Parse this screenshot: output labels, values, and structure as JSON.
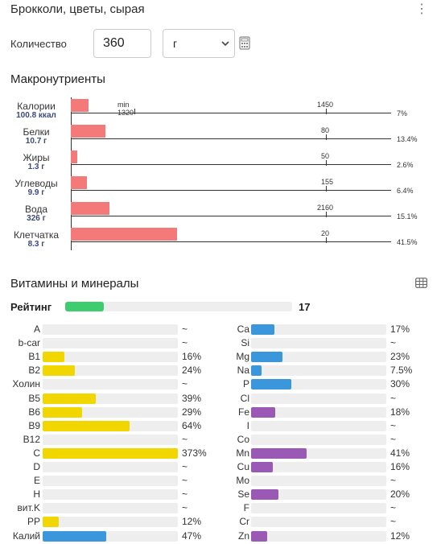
{
  "header": {
    "title": "Брокколи, цветы, сырая"
  },
  "quantity": {
    "label": "Количество",
    "value": "360",
    "unit": "г"
  },
  "macros": {
    "title": "Макронутриенты",
    "min_label": "min 1320",
    "color": "#f47a7a",
    "items": [
      {
        "name": "Калории",
        "value": "100.8 ккал",
        "target": "1450",
        "percent": "7%",
        "fraction": 0.07
      },
      {
        "name": "Белки",
        "value": "10.7 г",
        "target": "80",
        "percent": "13.4%",
        "fraction": 0.134
      },
      {
        "name": "Жиры",
        "value": "1.3 г",
        "target": "50",
        "percent": "2.6%",
        "fraction": 0.026
      },
      {
        "name": "Углеводы",
        "value": "9.9 г",
        "target": "155",
        "percent": "6.4%",
        "fraction": 0.064
      },
      {
        "name": "Вода",
        "value": "326 г",
        "target": "2160",
        "percent": "15.1%",
        "fraction": 0.151
      },
      {
        "name": "Клетчатка",
        "value": "8.3 г",
        "target": "20",
        "percent": "41.5%",
        "fraction": 0.415
      }
    ]
  },
  "vitamins": {
    "title": "Витамины и минералы",
    "rating_label": "Рейтинг",
    "rating_value": "17",
    "rating_fraction": 0.17,
    "rating_color": "#3dcc6e",
    "colors": {
      "vitamin": "#f2d600",
      "mineral_blue": "#3b97dc",
      "mineral_purple": "#9b59b6"
    },
    "left": [
      {
        "name": "A",
        "value": "~",
        "fraction": 0,
        "color": "#f2d600"
      },
      {
        "name": "b-car",
        "value": "~",
        "fraction": 0,
        "color": "#f2d600"
      },
      {
        "name": "B1",
        "value": "16%",
        "fraction": 0.16,
        "color": "#f2d600"
      },
      {
        "name": "B2",
        "value": "24%",
        "fraction": 0.24,
        "color": "#f2d600"
      },
      {
        "name": "Холин",
        "value": "~",
        "fraction": 0,
        "color": "#f2d600"
      },
      {
        "name": "B5",
        "value": "39%",
        "fraction": 0.39,
        "color": "#f2d600"
      },
      {
        "name": "B6",
        "value": "29%",
        "fraction": 0.29,
        "color": "#f2d600"
      },
      {
        "name": "B9",
        "value": "64%",
        "fraction": 0.64,
        "color": "#f2d600"
      },
      {
        "name": "B12",
        "value": "~",
        "fraction": 0,
        "color": "#f2d600"
      },
      {
        "name": "C",
        "value": "373%",
        "fraction": 1,
        "color": "#f2d600"
      },
      {
        "name": "D",
        "value": "~",
        "fraction": 0,
        "color": "#f2d600"
      },
      {
        "name": "E",
        "value": "~",
        "fraction": 0,
        "color": "#f2d600"
      },
      {
        "name": "H",
        "value": "~",
        "fraction": 0,
        "color": "#f2d600"
      },
      {
        "name": "вит.K",
        "value": "~",
        "fraction": 0,
        "color": "#f2d600"
      },
      {
        "name": "PP",
        "value": "12%",
        "fraction": 0.12,
        "color": "#f2d600"
      },
      {
        "name": "Калий",
        "value": "47%",
        "fraction": 0.47,
        "color": "#3b97dc"
      }
    ],
    "right": [
      {
        "name": "Ca",
        "value": "17%",
        "fraction": 0.17,
        "color": "#3b97dc"
      },
      {
        "name": "Si",
        "value": "~",
        "fraction": 0,
        "color": "#3b97dc"
      },
      {
        "name": "Mg",
        "value": "23%",
        "fraction": 0.23,
        "color": "#3b97dc"
      },
      {
        "name": "Na",
        "value": "7.5%",
        "fraction": 0.075,
        "color": "#3b97dc"
      },
      {
        "name": "P",
        "value": "30%",
        "fraction": 0.3,
        "color": "#3b97dc"
      },
      {
        "name": "Cl",
        "value": "~",
        "fraction": 0,
        "color": "#3b97dc"
      },
      {
        "name": "Fe",
        "value": "18%",
        "fraction": 0.18,
        "color": "#9b59b6"
      },
      {
        "name": "I",
        "value": "~",
        "fraction": 0,
        "color": "#9b59b6"
      },
      {
        "name": "Co",
        "value": "~",
        "fraction": 0,
        "color": "#9b59b6"
      },
      {
        "name": "Mn",
        "value": "41%",
        "fraction": 0.41,
        "color": "#9b59b6"
      },
      {
        "name": "Cu",
        "value": "16%",
        "fraction": 0.16,
        "color": "#9b59b6"
      },
      {
        "name": "Mo",
        "value": "~",
        "fraction": 0,
        "color": "#9b59b6"
      },
      {
        "name": "Se",
        "value": "20%",
        "fraction": 0.2,
        "color": "#9b59b6"
      },
      {
        "name": "F",
        "value": "~",
        "fraction": 0,
        "color": "#9b59b6"
      },
      {
        "name": "Cr",
        "value": "~",
        "fraction": 0,
        "color": "#9b59b6"
      },
      {
        "name": "Zn",
        "value": "12%",
        "fraction": 0.12,
        "color": "#9b59b6"
      }
    ]
  }
}
